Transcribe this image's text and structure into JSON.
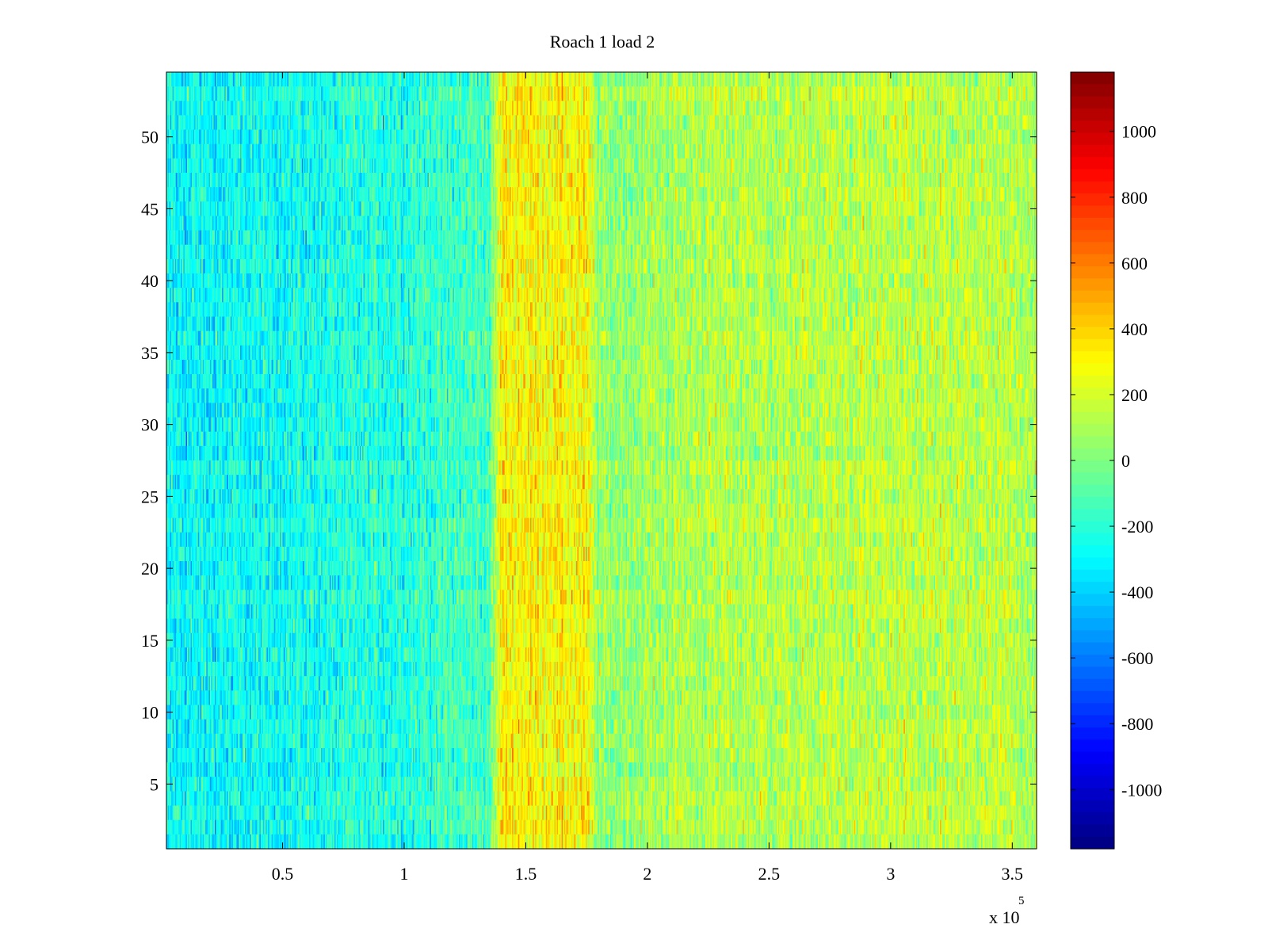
{
  "chart_data": {
    "type": "heatmap",
    "title": "Roach 1 load 2",
    "xlabel": "",
    "ylabel": "",
    "x_multiplier_label": "x 10",
    "x_multiplier_exponent": "5",
    "xlim": [
      2250,
      360000
    ],
    "ylim": [
      0.5,
      54.5
    ],
    "rows": 54,
    "columns": 720,
    "x_ticks": [
      {
        "value": 50000,
        "label": "0.5"
      },
      {
        "value": 100000,
        "label": "1"
      },
      {
        "value": 150000,
        "label": "1.5"
      },
      {
        "value": 200000,
        "label": "2"
      },
      {
        "value": 250000,
        "label": "2.5"
      },
      {
        "value": 300000,
        "label": "3"
      },
      {
        "value": 350000,
        "label": "3.5"
      }
    ],
    "y_ticks": [
      {
        "value": 5,
        "label": "5"
      },
      {
        "value": 10,
        "label": "10"
      },
      {
        "value": 15,
        "label": "15"
      },
      {
        "value": 20,
        "label": "20"
      },
      {
        "value": 25,
        "label": "25"
      },
      {
        "value": 30,
        "label": "30"
      },
      {
        "value": 35,
        "label": "35"
      },
      {
        "value": 40,
        "label": "40"
      },
      {
        "value": 45,
        "label": "45"
      },
      {
        "value": 50,
        "label": "50"
      }
    ],
    "colorbar": {
      "colormap": "jet",
      "clim": [
        -1180,
        1180
      ],
      "ticks": [
        {
          "value": 1000,
          "label": "1000"
        },
        {
          "value": 800,
          "label": "800"
        },
        {
          "value": 600,
          "label": "600"
        },
        {
          "value": 400,
          "label": "400"
        },
        {
          "value": 200,
          "label": "200"
        },
        {
          "value": 0,
          "label": "0"
        },
        {
          "value": -200,
          "label": "-200"
        },
        {
          "value": -400,
          "label": "-400"
        },
        {
          "value": -600,
          "label": "-600"
        },
        {
          "value": -800,
          "label": "-800"
        },
        {
          "value": -1000,
          "label": "-1000"
        }
      ]
    },
    "value_profile": [
      {
        "x": 2250,
        "mean": -300
      },
      {
        "x": 60000,
        "mean": -250
      },
      {
        "x": 100000,
        "mean": -200
      },
      {
        "x": 135000,
        "mean": -120
      },
      {
        "x": 140000,
        "mean": 320
      },
      {
        "x": 175000,
        "mean": 300
      },
      {
        "x": 180000,
        "mean": 40
      },
      {
        "x": 220000,
        "mean": 120
      },
      {
        "x": 300000,
        "mean": 140
      },
      {
        "x": 360000,
        "mean": 130
      }
    ],
    "noise_sd": 160,
    "grid": false
  }
}
